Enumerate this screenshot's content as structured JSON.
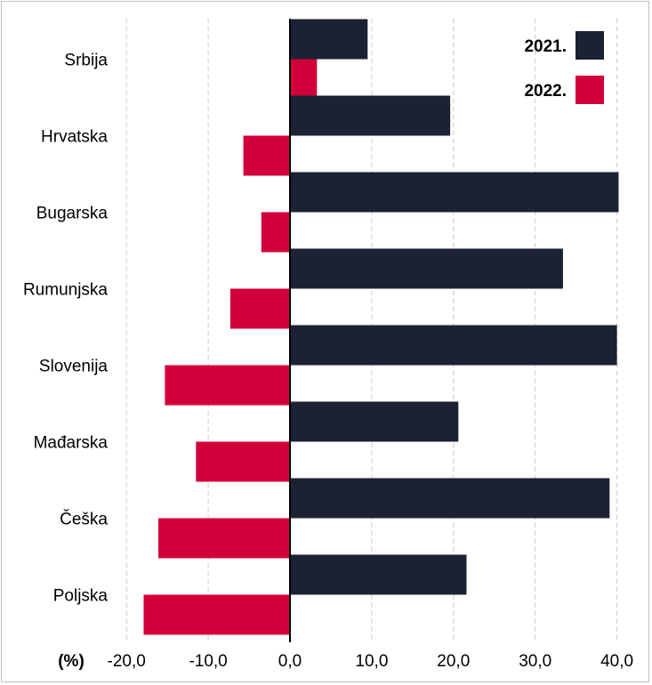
{
  "chart_data": {
    "type": "bar",
    "orientation": "horizontal",
    "categories": [
      "Srbija",
      "Hrvatska",
      "Bugarska",
      "Rumunjska",
      "Slovenija",
      "Mađarska",
      "Češka",
      "Poljska"
    ],
    "series": [
      {
        "name": "2021.",
        "color": "#1c2233",
        "values": [
          9.5,
          19.6,
          40.2,
          33.4,
          40.0,
          20.6,
          39.1,
          21.6
        ]
      },
      {
        "name": "2022.",
        "color": "#d1003a",
        "values": [
          3.3,
          -5.7,
          -3.5,
          -7.3,
          -15.3,
          -11.5,
          -16.1,
          -17.9
        ]
      }
    ],
    "xticks": [
      "-20,0",
      "-10,0",
      "0,0",
      "10,0",
      "20,0",
      "30,0",
      "40,0"
    ],
    "xtick_values": [
      -20,
      -10,
      0,
      10,
      20,
      30,
      40
    ],
    "xlim": [
      -20,
      40
    ],
    "xlabel": "(%)",
    "grid": "vertical-dashed",
    "legend_position": "top-right"
  }
}
